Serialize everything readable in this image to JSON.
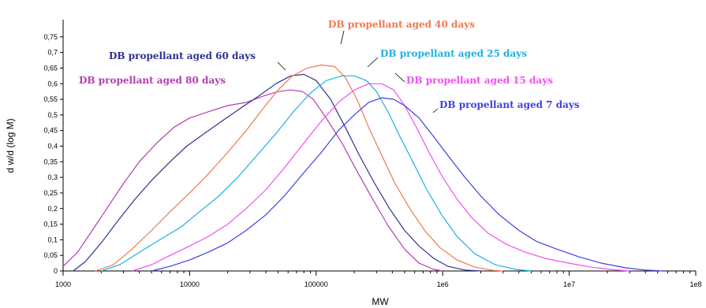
{
  "chart_data": {
    "type": "line",
    "xlabel": "MW",
    "ylabel": "d w/d (log M)",
    "xscale": "log",
    "xlim": [
      1000,
      100000000
    ],
    "ylim": [
      0,
      0.8
    ],
    "grid": false,
    "legend": "inline labels",
    "x_tick_labels": [
      "1000",
      "10000",
      "100000",
      "1e6",
      "1e7",
      "1e8"
    ],
    "y_tick_labels": [
      "0",
      "0,05",
      "0,1",
      "0,15",
      "0,2",
      "0,25",
      "0,3",
      "0,35",
      "0,4",
      "0,45",
      "0,5",
      "0,55",
      "0,6",
      "0,65",
      "0,7",
      "0,75"
    ],
    "series": [
      {
        "name": "DB propellant aged 80 days",
        "color": "#b040b0",
        "points": [
          [
            1000,
            0.015
          ],
          [
            1300,
            0.06
          ],
          [
            1700,
            0.13
          ],
          [
            2300,
            0.21
          ],
          [
            3000,
            0.28
          ],
          [
            4000,
            0.35
          ],
          [
            5500,
            0.41
          ],
          [
            7500,
            0.46
          ],
          [
            10000,
            0.49
          ],
          [
            14000,
            0.51
          ],
          [
            20000,
            0.53
          ],
          [
            28000,
            0.54
          ],
          [
            38000,
            0.56
          ],
          [
            50000,
            0.575
          ],
          [
            63000,
            0.58
          ],
          [
            78000,
            0.575
          ],
          [
            95000,
            0.55
          ],
          [
            120000,
            0.49
          ],
          [
            160000,
            0.41
          ],
          [
            210000,
            0.32
          ],
          [
            280000,
            0.23
          ],
          [
            370000,
            0.145
          ],
          [
            500000,
            0.07
          ],
          [
            650000,
            0.025
          ],
          [
            850000,
            0.005
          ],
          [
            1000000,
            0
          ]
        ]
      },
      {
        "name": "DB propellant aged 60 days",
        "color": "#303090",
        "points": [
          [
            1200,
            0
          ],
          [
            1500,
            0.03
          ],
          [
            2000,
            0.09
          ],
          [
            2700,
            0.16
          ],
          [
            3700,
            0.23
          ],
          [
            5000,
            0.29
          ],
          [
            7000,
            0.35
          ],
          [
            9500,
            0.4
          ],
          [
            13000,
            0.44
          ],
          [
            18000,
            0.48
          ],
          [
            25000,
            0.52
          ],
          [
            35000,
            0.56
          ],
          [
            48000,
            0.6
          ],
          [
            63000,
            0.625
          ],
          [
            80000,
            0.63
          ],
          [
            100000,
            0.61
          ],
          [
            130000,
            0.55
          ],
          [
            170000,
            0.46
          ],
          [
            220000,
            0.37
          ],
          [
            290000,
            0.28
          ],
          [
            380000,
            0.2
          ],
          [
            500000,
            0.13
          ],
          [
            650000,
            0.08
          ],
          [
            850000,
            0.04
          ],
          [
            1100000,
            0.015
          ],
          [
            1500000,
            0.003
          ],
          [
            2000000,
            0
          ]
        ]
      },
      {
        "name": "DB propellant aged 40 days",
        "color": "#f07850",
        "points": [
          [
            1800,
            0
          ],
          [
            2500,
            0.02
          ],
          [
            3500,
            0.07
          ],
          [
            5000,
            0.13
          ],
          [
            7000,
            0.19
          ],
          [
            10000,
            0.25
          ],
          [
            14000,
            0.31
          ],
          [
            20000,
            0.38
          ],
          [
            28000,
            0.45
          ],
          [
            38000,
            0.52
          ],
          [
            50000,
            0.58
          ],
          [
            65000,
            0.625
          ],
          [
            85000,
            0.65
          ],
          [
            110000,
            0.66
          ],
          [
            140000,
            0.655
          ],
          [
            170000,
            0.62
          ],
          [
            210000,
            0.55
          ],
          [
            260000,
            0.46
          ],
          [
            330000,
            0.37
          ],
          [
            420000,
            0.28
          ],
          [
            550000,
            0.2
          ],
          [
            720000,
            0.13
          ],
          [
            950000,
            0.075
          ],
          [
            1300000,
            0.035
          ],
          [
            1800000,
            0.012
          ],
          [
            2500000,
            0.002
          ],
          [
            3000000,
            0
          ]
        ]
      },
      {
        "name": "DB propellant aged 25 days",
        "color": "#20b0e0",
        "points": [
          [
            2000,
            0
          ],
          [
            2800,
            0.02
          ],
          [
            4000,
            0.06
          ],
          [
            5800,
            0.1
          ],
          [
            8500,
            0.14
          ],
          [
            12000,
            0.19
          ],
          [
            17000,
            0.24
          ],
          [
            24000,
            0.3
          ],
          [
            34000,
            0.37
          ],
          [
            48000,
            0.44
          ],
          [
            66000,
            0.51
          ],
          [
            90000,
            0.57
          ],
          [
            120000,
            0.61
          ],
          [
            160000,
            0.625
          ],
          [
            200000,
            0.625
          ],
          [
            250000,
            0.61
          ],
          [
            300000,
            0.575
          ],
          [
            370000,
            0.51
          ],
          [
            460000,
            0.43
          ],
          [
            580000,
            0.35
          ],
          [
            750000,
            0.26
          ],
          [
            980000,
            0.18
          ],
          [
            1300000,
            0.11
          ],
          [
            1800000,
            0.055
          ],
          [
            2600000,
            0.02
          ],
          [
            3800000,
            0.005
          ],
          [
            5000000,
            0
          ]
        ]
      },
      {
        "name": "DB propellant aged 15 days",
        "color": "#f050f0",
        "points": [
          [
            3500,
            0
          ],
          [
            5000,
            0.02
          ],
          [
            7000,
            0.05
          ],
          [
            10000,
            0.08
          ],
          [
            14000,
            0.11
          ],
          [
            20000,
            0.15
          ],
          [
            28000,
            0.2
          ],
          [
            40000,
            0.26
          ],
          [
            56000,
            0.33
          ],
          [
            80000,
            0.41
          ],
          [
            110000,
            0.48
          ],
          [
            150000,
            0.54
          ],
          [
            200000,
            0.58
          ],
          [
            260000,
            0.6
          ],
          [
            330000,
            0.6
          ],
          [
            410000,
            0.58
          ],
          [
            500000,
            0.53
          ],
          [
            620000,
            0.46
          ],
          [
            780000,
            0.38
          ],
          [
            1000000,
            0.3
          ],
          [
            1300000,
            0.23
          ],
          [
            1700000,
            0.17
          ],
          [
            2300000,
            0.12
          ],
          [
            3200000,
            0.085
          ],
          [
            4500000,
            0.06
          ],
          [
            6500000,
            0.04
          ],
          [
            10000000,
            0.025
          ],
          [
            15000000,
            0.012
          ],
          [
            22000000,
            0.004
          ],
          [
            30000000,
            0
          ]
        ]
      },
      {
        "name": "DB propellant aged 7 days",
        "color": "#4040e0",
        "points": [
          [
            5000,
            0
          ],
          [
            7000,
            0.015
          ],
          [
            10000,
            0.035
          ],
          [
            14000,
            0.06
          ],
          [
            20000,
            0.09
          ],
          [
            28000,
            0.13
          ],
          [
            40000,
            0.18
          ],
          [
            56000,
            0.24
          ],
          [
            78000,
            0.31
          ],
          [
            110000,
            0.38
          ],
          [
            150000,
            0.45
          ],
          [
            200000,
            0.5
          ],
          [
            260000,
            0.54
          ],
          [
            330000,
            0.555
          ],
          [
            410000,
            0.55
          ],
          [
            500000,
            0.53
          ],
          [
            650000,
            0.49
          ],
          [
            850000,
            0.43
          ],
          [
            1100000,
            0.37
          ],
          [
            1500000,
            0.3
          ],
          [
            2000000,
            0.24
          ],
          [
            2800000,
            0.18
          ],
          [
            4000000,
            0.13
          ],
          [
            5500000,
            0.095
          ],
          [
            8000000,
            0.07
          ],
          [
            12000000,
            0.045
          ],
          [
            18000000,
            0.025
          ],
          [
            28000000,
            0.01
          ],
          [
            40000000,
            0.003
          ],
          [
            55000000,
            0
          ]
        ]
      }
    ]
  }
}
